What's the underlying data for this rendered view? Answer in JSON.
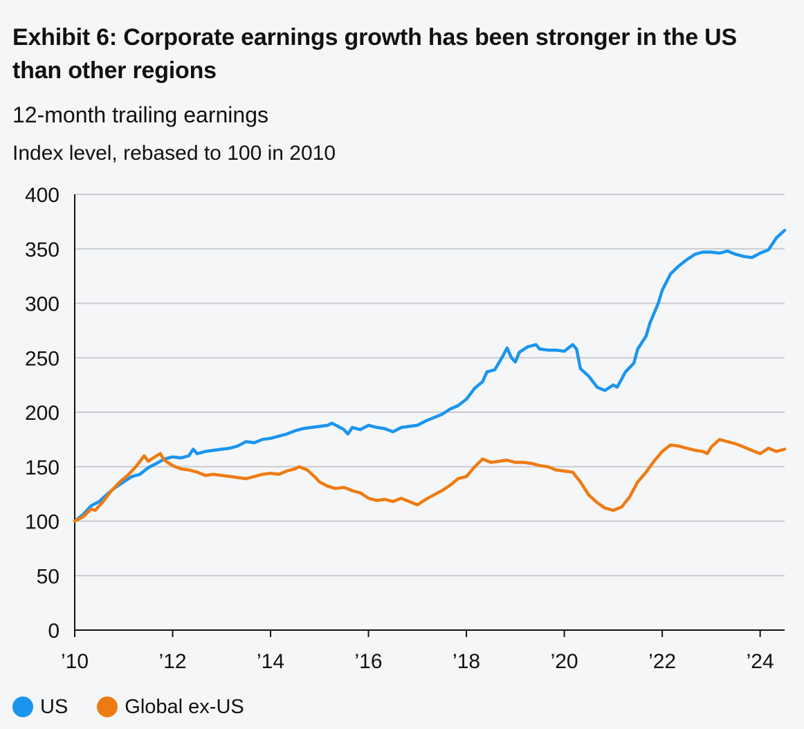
{
  "header": {
    "title": "Exhibit 6: Corporate earnings growth has been stronger in the US than other regions",
    "subtitle": "12-month trailing earnings",
    "unit_note": "Index level, rebased to 100 in 2010"
  },
  "colors": {
    "us": "#1a95ee",
    "global_ex_us": "#ee7b12",
    "grid": "#c9cbcf",
    "axis": "#111111"
  },
  "chart_data": {
    "type": "line",
    "title": "",
    "xlabel": "",
    "ylabel": "",
    "xlim": [
      2010,
      2024.5
    ],
    "ylim": [
      0,
      400
    ],
    "yticks": [
      0,
      50,
      100,
      150,
      200,
      250,
      300,
      350,
      400
    ],
    "xticks": [
      {
        "value": 2010,
        "label": "’10"
      },
      {
        "value": 2012,
        "label": "’12"
      },
      {
        "value": 2014,
        "label": "’14"
      },
      {
        "value": 2016,
        "label": "’16"
      },
      {
        "value": 2018,
        "label": "’18"
      },
      {
        "value": 2020,
        "label": "’20"
      },
      {
        "value": 2022,
        "label": "’22"
      },
      {
        "value": 2024,
        "label": "’24"
      }
    ],
    "grid": "horizontal",
    "legend_position": "bottom-left",
    "series": [
      {
        "name": "US",
        "color": "#1a95ee",
        "points": [
          [
            2010.0,
            100
          ],
          [
            2010.17,
            106
          ],
          [
            2010.33,
            114
          ],
          [
            2010.5,
            118
          ],
          [
            2010.67,
            125
          ],
          [
            2010.83,
            131
          ],
          [
            2011.0,
            136
          ],
          [
            2011.17,
            141
          ],
          [
            2011.33,
            143
          ],
          [
            2011.5,
            149
          ],
          [
            2011.67,
            153
          ],
          [
            2011.83,
            157
          ],
          [
            2012.0,
            159
          ],
          [
            2012.17,
            158
          ],
          [
            2012.33,
            160
          ],
          [
            2012.42,
            166
          ],
          [
            2012.5,
            162
          ],
          [
            2012.67,
            164
          ],
          [
            2012.83,
            165
          ],
          [
            2013.0,
            166
          ],
          [
            2013.17,
            167
          ],
          [
            2013.33,
            169
          ],
          [
            2013.5,
            173
          ],
          [
            2013.67,
            172
          ],
          [
            2013.83,
            175
          ],
          [
            2014.0,
            176
          ],
          [
            2014.17,
            178
          ],
          [
            2014.33,
            180
          ],
          [
            2014.5,
            183
          ],
          [
            2014.67,
            185
          ],
          [
            2014.83,
            186
          ],
          [
            2015.0,
            187
          ],
          [
            2015.17,
            188
          ],
          [
            2015.25,
            190
          ],
          [
            2015.42,
            186
          ],
          [
            2015.5,
            184
          ],
          [
            2015.58,
            180
          ],
          [
            2015.67,
            186
          ],
          [
            2015.83,
            184
          ],
          [
            2016.0,
            188
          ],
          [
            2016.17,
            186
          ],
          [
            2016.33,
            185
          ],
          [
            2016.5,
            182
          ],
          [
            2016.67,
            186
          ],
          [
            2016.83,
            187
          ],
          [
            2017.0,
            188
          ],
          [
            2017.17,
            192
          ],
          [
            2017.33,
            195
          ],
          [
            2017.5,
            198
          ],
          [
            2017.67,
            203
          ],
          [
            2017.83,
            206
          ],
          [
            2018.0,
            212
          ],
          [
            2018.17,
            222
          ],
          [
            2018.33,
            228
          ],
          [
            2018.42,
            237
          ],
          [
            2018.58,
            239
          ],
          [
            2018.75,
            252
          ],
          [
            2018.83,
            259
          ],
          [
            2018.92,
            250
          ],
          [
            2019.0,
            246
          ],
          [
            2019.08,
            255
          ],
          [
            2019.25,
            260
          ],
          [
            2019.42,
            262
          ],
          [
            2019.5,
            258
          ],
          [
            2019.67,
            257
          ],
          [
            2019.83,
            257
          ],
          [
            2020.0,
            256
          ],
          [
            2020.17,
            262
          ],
          [
            2020.25,
            258
          ],
          [
            2020.33,
            240
          ],
          [
            2020.5,
            233
          ],
          [
            2020.67,
            223
          ],
          [
            2020.83,
            220
          ],
          [
            2021.0,
            225
          ],
          [
            2021.08,
            223
          ],
          [
            2021.25,
            237
          ],
          [
            2021.42,
            245
          ],
          [
            2021.5,
            258
          ],
          [
            2021.67,
            270
          ],
          [
            2021.75,
            282
          ],
          [
            2021.92,
            300
          ],
          [
            2022.0,
            312
          ],
          [
            2022.17,
            327
          ],
          [
            2022.33,
            334
          ],
          [
            2022.5,
            340
          ],
          [
            2022.67,
            345
          ],
          [
            2022.83,
            347
          ],
          [
            2023.0,
            347
          ],
          [
            2023.17,
            346
          ],
          [
            2023.33,
            348
          ],
          [
            2023.5,
            345
          ],
          [
            2023.67,
            343
          ],
          [
            2023.83,
            342
          ],
          [
            2024.0,
            346
          ],
          [
            2024.17,
            349
          ],
          [
            2024.33,
            360
          ],
          [
            2024.5,
            367
          ]
        ]
      },
      {
        "name": "Global ex-US",
        "color": "#ee7b12",
        "points": [
          [
            2010.0,
            100
          ],
          [
            2010.17,
            104
          ],
          [
            2010.33,
            111
          ],
          [
            2010.42,
            110
          ],
          [
            2010.58,
            118
          ],
          [
            2010.75,
            128
          ],
          [
            2010.92,
            136
          ],
          [
            2011.08,
            142
          ],
          [
            2011.25,
            150
          ],
          [
            2011.42,
            160
          ],
          [
            2011.5,
            155
          ],
          [
            2011.67,
            160
          ],
          [
            2011.75,
            162
          ],
          [
            2011.83,
            156
          ],
          [
            2012.0,
            151
          ],
          [
            2012.17,
            148
          ],
          [
            2012.33,
            147
          ],
          [
            2012.5,
            145
          ],
          [
            2012.67,
            142
          ],
          [
            2012.83,
            143
          ],
          [
            2013.0,
            142
          ],
          [
            2013.17,
            141
          ],
          [
            2013.33,
            140
          ],
          [
            2013.5,
            139
          ],
          [
            2013.67,
            141
          ],
          [
            2013.83,
            143
          ],
          [
            2014.0,
            144
          ],
          [
            2014.17,
            143
          ],
          [
            2014.33,
            146
          ],
          [
            2014.5,
            148
          ],
          [
            2014.58,
            150
          ],
          [
            2014.75,
            147
          ],
          [
            2014.92,
            140
          ],
          [
            2015.0,
            136
          ],
          [
            2015.17,
            132
          ],
          [
            2015.33,
            130
          ],
          [
            2015.5,
            131
          ],
          [
            2015.67,
            128
          ],
          [
            2015.83,
            126
          ],
          [
            2016.0,
            121
          ],
          [
            2016.17,
            119
          ],
          [
            2016.33,
            120
          ],
          [
            2016.5,
            118
          ],
          [
            2016.67,
            121
          ],
          [
            2016.83,
            118
          ],
          [
            2017.0,
            115
          ],
          [
            2017.17,
            120
          ],
          [
            2017.33,
            124
          ],
          [
            2017.5,
            128
          ],
          [
            2017.67,
            133
          ],
          [
            2017.83,
            139
          ],
          [
            2018.0,
            141
          ],
          [
            2018.17,
            150
          ],
          [
            2018.33,
            157
          ],
          [
            2018.5,
            154
          ],
          [
            2018.67,
            155
          ],
          [
            2018.83,
            156
          ],
          [
            2019.0,
            154
          ],
          [
            2019.17,
            154
          ],
          [
            2019.33,
            153
          ],
          [
            2019.5,
            151
          ],
          [
            2019.67,
            150
          ],
          [
            2019.83,
            147
          ],
          [
            2020.0,
            146
          ],
          [
            2020.17,
            145
          ],
          [
            2020.33,
            136
          ],
          [
            2020.5,
            124
          ],
          [
            2020.67,
            117
          ],
          [
            2020.83,
            112
          ],
          [
            2021.0,
            110
          ],
          [
            2021.17,
            113
          ],
          [
            2021.33,
            122
          ],
          [
            2021.5,
            136
          ],
          [
            2021.67,
            145
          ],
          [
            2021.83,
            155
          ],
          [
            2022.0,
            164
          ],
          [
            2022.17,
            170
          ],
          [
            2022.33,
            169
          ],
          [
            2022.5,
            167
          ],
          [
            2022.67,
            165
          ],
          [
            2022.83,
            164
          ],
          [
            2022.92,
            162
          ],
          [
            2023.0,
            168
          ],
          [
            2023.17,
            175
          ],
          [
            2023.33,
            173
          ],
          [
            2023.5,
            171
          ],
          [
            2023.67,
            168
          ],
          [
            2023.83,
            165
          ],
          [
            2024.0,
            162
          ],
          [
            2024.17,
            167
          ],
          [
            2024.33,
            164
          ],
          [
            2024.5,
            166
          ]
        ]
      }
    ]
  },
  "legend": {
    "items": [
      {
        "label": "US"
      },
      {
        "label": "Global ex-US"
      }
    ]
  }
}
